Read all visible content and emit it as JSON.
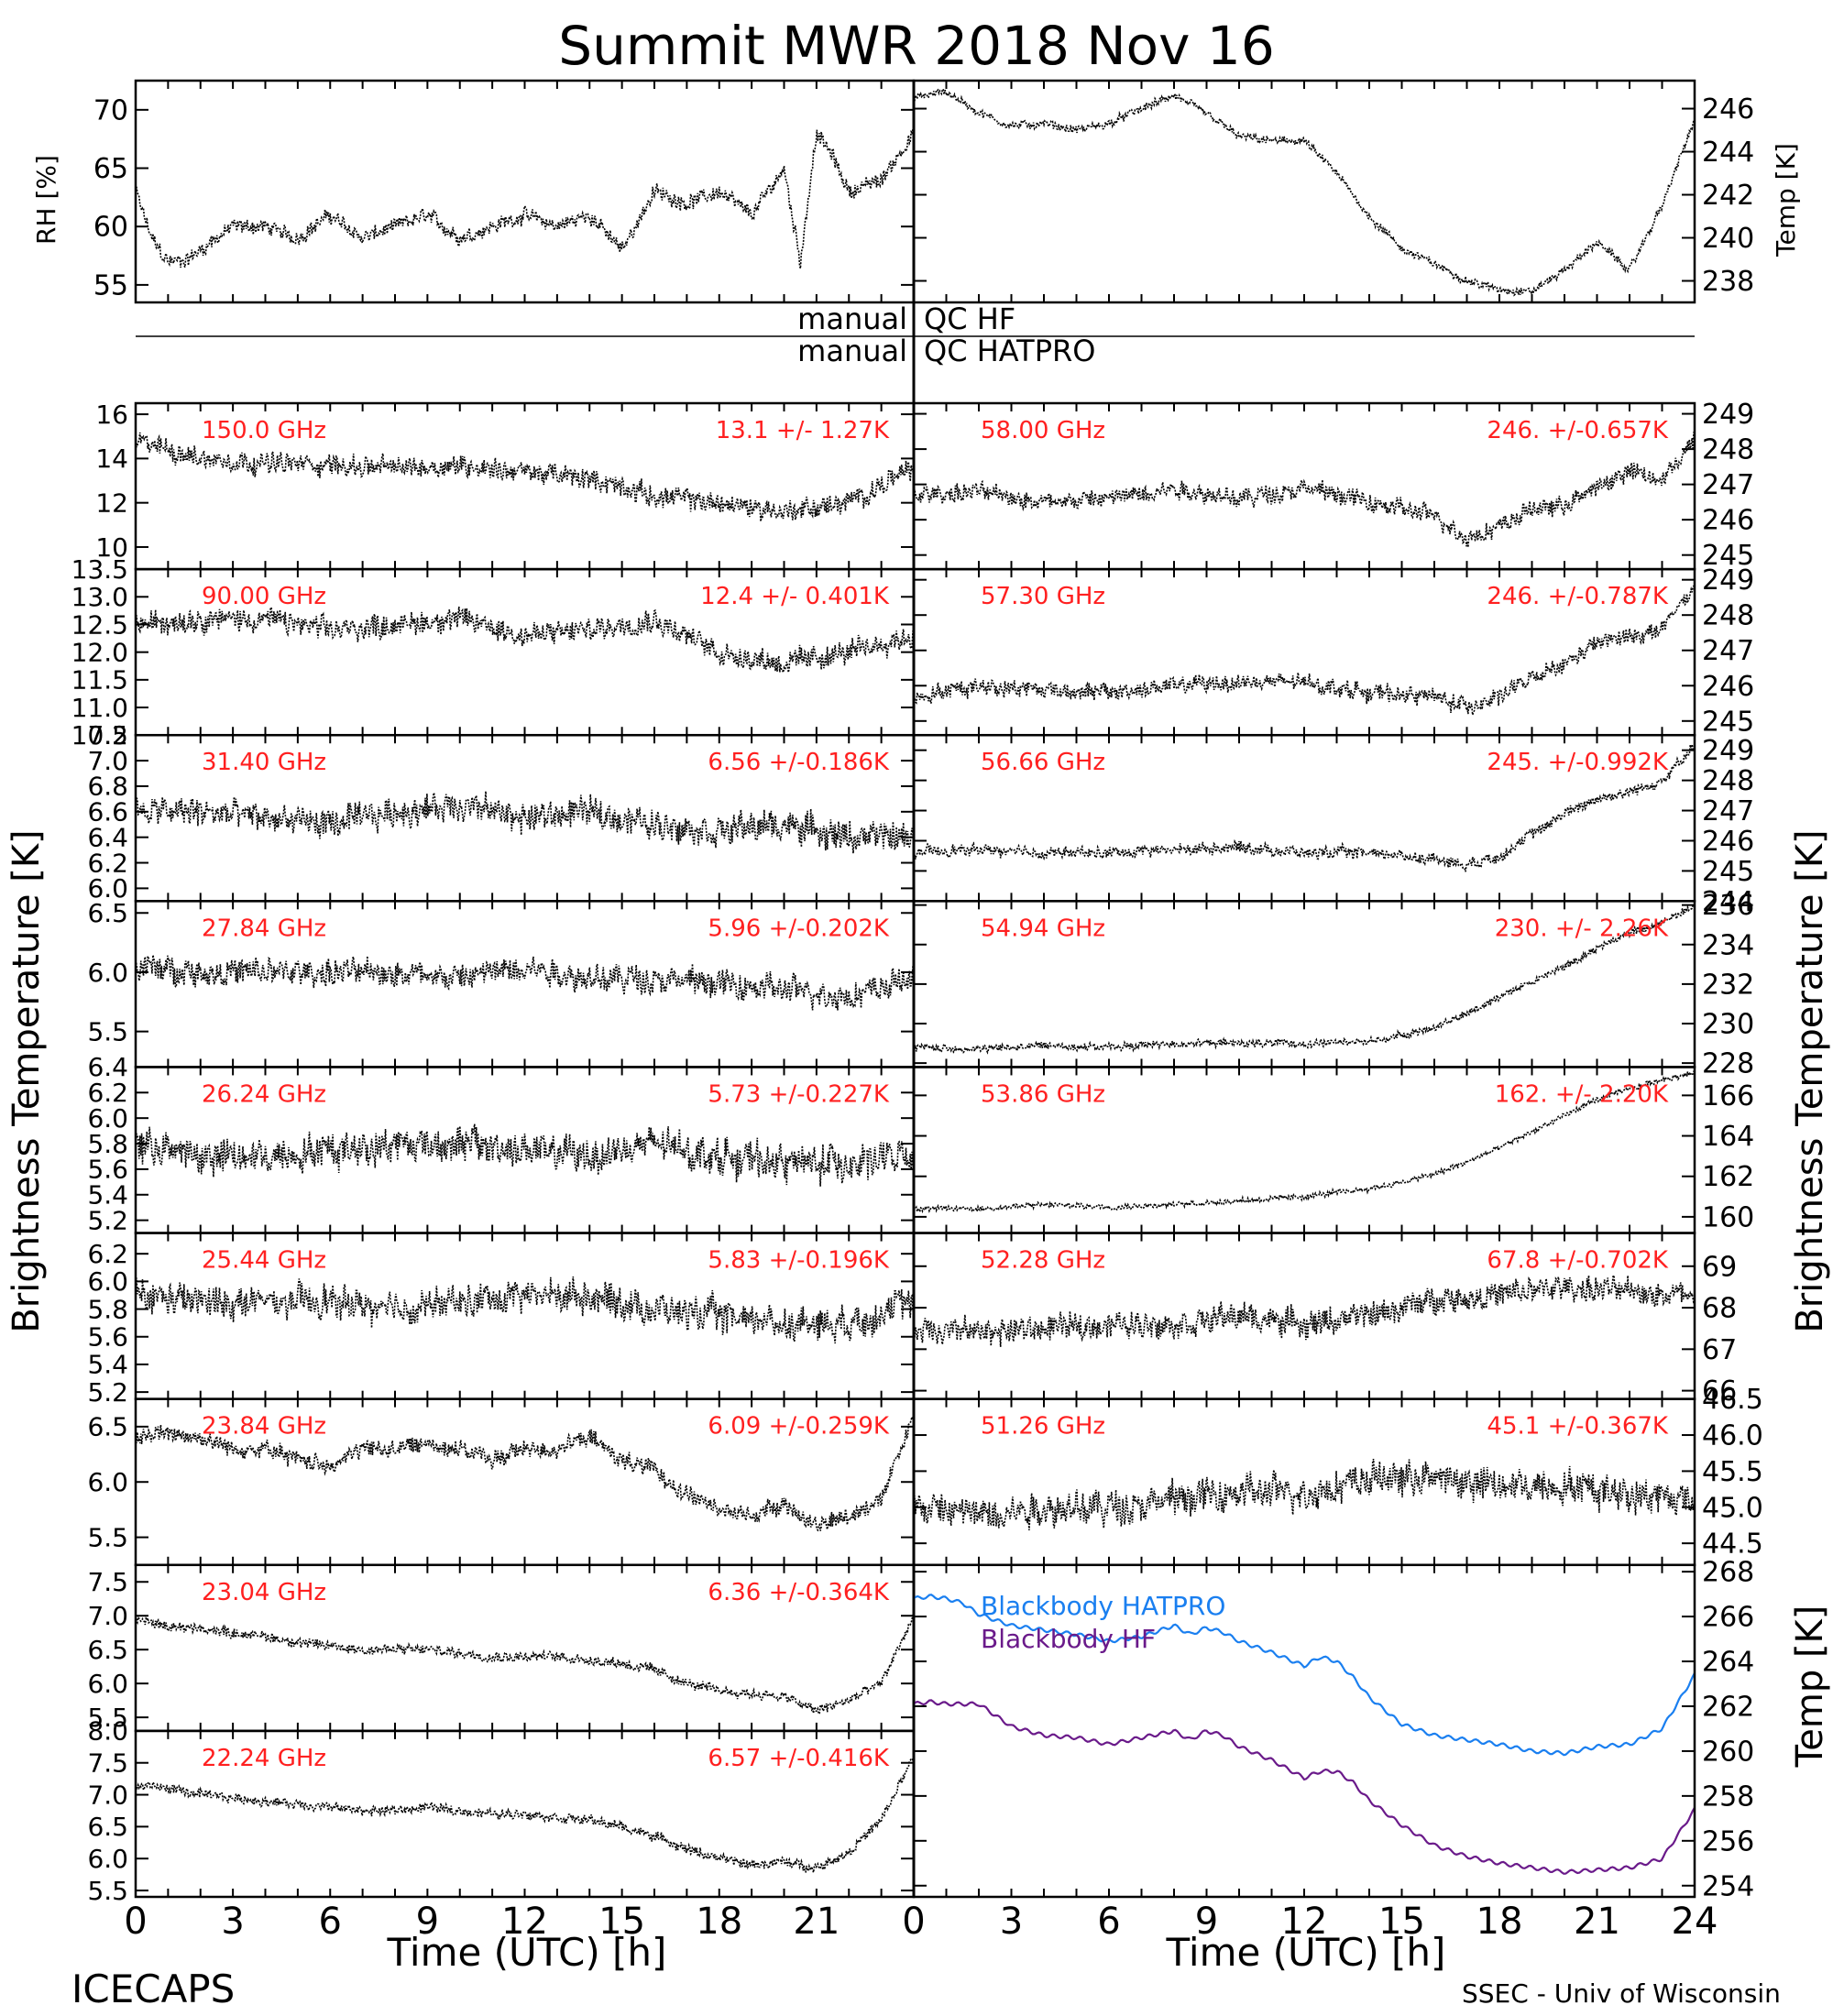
{
  "title": "Summit MWR 2018 Nov 16",
  "footer": {
    "left": "ICECAPS",
    "right": "SSEC - Univ of Wisconsin"
  },
  "qc": {
    "left_hf": "manual",
    "right_hf": "QC HF",
    "left_hatpro": "manual",
    "right_hatpro": "QC HATPRO"
  },
  "axes": {
    "rh_label": "RH [%]",
    "temp_label": "Temp [K]",
    "bt_label": "Brightness Temperature [K]",
    "bb_temp_label": "Temp [K]",
    "xlabel": "Time (UTC) [h]",
    "x_ticks_left": [
      "0",
      "3",
      "6",
      "9",
      "12",
      "15",
      "18",
      "21"
    ],
    "x_ticks_right": [
      "0",
      "3",
      "6",
      "9",
      "12",
      "15",
      "18",
      "21",
      "24"
    ]
  },
  "colors": {
    "red": "#ff2020",
    "hatpro": "#1a7ff0",
    "hf": "#6a1a8a",
    "trace": "#000000"
  },
  "chart_data": [
    {
      "type": "line",
      "title": "",
      "xlabel": "",
      "ylabel": "RH [%]",
      "xlim": [
        0,
        24
      ],
      "ylim": [
        53.5,
        72.5
      ],
      "yticks": [
        55,
        60,
        65,
        70
      ],
      "series": [
        {
          "x": [
            0,
            0.5,
            1,
            1.5,
            2,
            3,
            4,
            5,
            6,
            7,
            8,
            9,
            10,
            11,
            12,
            13,
            14,
            15,
            16,
            17,
            18,
            19,
            20,
            20.5,
            21,
            21.5,
            22,
            23,
            24
          ],
          "values": [
            63,
            59,
            57,
            57,
            58,
            60,
            60,
            59,
            61,
            59,
            60,
            61,
            59,
            60,
            61,
            60,
            61,
            58,
            63,
            62,
            63,
            61,
            65,
            57,
            68,
            66,
            63,
            64,
            68
          ]
        }
      ]
    },
    {
      "type": "line",
      "title": "",
      "xlabel": "",
      "ylabel": "Temp [K]",
      "xlim": [
        0,
        24
      ],
      "ylim": [
        237,
        247.3
      ],
      "yticks": [
        238,
        240,
        242,
        244,
        246
      ],
      "series": [
        {
          "x": [
            0,
            1,
            2,
            3,
            4,
            5,
            6,
            7,
            8,
            9,
            10,
            11,
            12,
            13,
            14,
            15,
            16,
            17,
            18,
            19,
            20,
            21,
            22,
            23,
            24
          ],
          "values": [
            246.5,
            246.8,
            245.8,
            245.2,
            245.3,
            245,
            245.3,
            246,
            246.6,
            245.8,
            244.7,
            244.5,
            244.5,
            243,
            241,
            239.5,
            238.8,
            238,
            237.6,
            237.5,
            238.5,
            239.8,
            238.5,
            241.5,
            245.5
          ]
        }
      ]
    }
  ],
  "panels_left": [
    {
      "freq": "150.0 GHz",
      "stat": "13.1 +/-  1.27K",
      "ylim": [
        9,
        16.5
      ],
      "yticks": [
        "10",
        "12",
        "14",
        "16"
      ],
      "x": [
        0,
        2,
        4,
        6,
        8,
        10,
        12,
        14,
        16,
        18,
        20,
        22,
        24
      ],
      "values": [
        14.8,
        14,
        13.8,
        13.7,
        13.6,
        13.7,
        13.4,
        13.1,
        12.3,
        12,
        11.6,
        12,
        13.6
      ],
      "noise": 0.9
    },
    {
      "freq": "90.00 GHz",
      "stat": "12.4 +/- 0.401K",
      "ylim": [
        10.5,
        13.5
      ],
      "yticks": [
        "10.5",
        "11.0",
        "11.5",
        "12.0",
        "12.5",
        "13.0",
        "13.5"
      ],
      "x": [
        0,
        2,
        4,
        6,
        8,
        10,
        12,
        14,
        16,
        18,
        20,
        22,
        24
      ],
      "values": [
        12.5,
        12.6,
        12.6,
        12.4,
        12.5,
        12.6,
        12.3,
        12.4,
        12.6,
        12.0,
        11.8,
        12.0,
        12.3
      ],
      "noise": 0.4
    },
    {
      "freq": "31.40 GHz",
      "stat": "6.56 +/-0.186K",
      "ylim": [
        5.9,
        7.2
      ],
      "yticks": [
        "6.0",
        "6.2",
        "6.4",
        "6.6",
        "6.8",
        "7.0",
        "7.2"
      ],
      "x": [
        0,
        2,
        4,
        6,
        8,
        10,
        12,
        14,
        16,
        18,
        20,
        22,
        24
      ],
      "values": [
        6.6,
        6.6,
        6.55,
        6.5,
        6.6,
        6.65,
        6.55,
        6.6,
        6.5,
        6.45,
        6.5,
        6.4,
        6.4
      ],
      "noise": 0.22
    },
    {
      "freq": "27.84 GHz",
      "stat": "5.96 +/-0.202K",
      "ylim": [
        5.2,
        6.6
      ],
      "yticks": [
        "5.5",
        "6.0",
        "6.5"
      ],
      "x": [
        0,
        2,
        4,
        6,
        8,
        10,
        12,
        14,
        16,
        18,
        20,
        22,
        24
      ],
      "values": [
        6.05,
        6.0,
        6.0,
        6.0,
        6.0,
        5.95,
        6.05,
        5.95,
        5.95,
        5.9,
        5.85,
        5.8,
        5.95
      ],
      "noise": 0.22
    },
    {
      "freq": "26.24 GHz",
      "stat": "5.73 +/-0.227K",
      "ylim": [
        5.1,
        6.4
      ],
      "yticks": [
        "5.2",
        "5.4",
        "5.6",
        "5.8",
        "6.0",
        "6.2",
        "6.4"
      ],
      "x": [
        0,
        2,
        4,
        6,
        8,
        10,
        12,
        14,
        16,
        18,
        20,
        22,
        24
      ],
      "values": [
        5.8,
        5.7,
        5.7,
        5.75,
        5.8,
        5.8,
        5.75,
        5.7,
        5.8,
        5.7,
        5.65,
        5.65,
        5.7
      ],
      "noise": 0.26
    },
    {
      "freq": "25.44 GHz",
      "stat": "5.83 +/-0.196K",
      "ylim": [
        5.15,
        6.35
      ],
      "yticks": [
        "5.2",
        "5.4",
        "5.6",
        "5.8",
        "6.0",
        "6.2"
      ],
      "x": [
        0,
        2,
        4,
        6,
        8,
        10,
        12,
        14,
        16,
        18,
        20,
        22,
        24
      ],
      "values": [
        5.9,
        5.85,
        5.85,
        5.85,
        5.8,
        5.85,
        5.9,
        5.9,
        5.8,
        5.75,
        5.7,
        5.7,
        5.85
      ],
      "noise": 0.22
    },
    {
      "freq": "23.84 GHz",
      "stat": "6.09 +/-0.259K",
      "ylim": [
        5.25,
        6.75
      ],
      "yticks": [
        "5.5",
        "6.0",
        "6.5"
      ],
      "x": [
        0,
        1,
        2,
        3,
        4,
        5,
        6,
        7,
        8,
        9,
        10,
        11,
        12,
        13,
        14,
        15,
        16,
        17,
        18,
        19,
        20,
        21,
        22,
        23,
        24
      ],
      "values": [
        6.4,
        6.45,
        6.4,
        6.3,
        6.3,
        6.2,
        6.15,
        6.3,
        6.3,
        6.35,
        6.3,
        6.2,
        6.3,
        6.3,
        6.4,
        6.2,
        6.1,
        5.9,
        5.75,
        5.7,
        5.8,
        5.6,
        5.7,
        5.85,
        6.6
      ],
      "noise": 0.15
    },
    {
      "freq": "23.04 GHz",
      "stat": "6.36 +/-0.364K",
      "ylim": [
        5.3,
        7.75
      ],
      "yticks": [
        "5.5",
        "6.0",
        "6.5",
        "7.0",
        "7.5"
      ],
      "x": [
        0,
        1,
        2,
        3,
        4,
        5,
        6,
        7,
        8,
        9,
        10,
        11,
        12,
        13,
        14,
        15,
        16,
        17,
        18,
        19,
        20,
        21,
        22,
        23,
        24
      ],
      "values": [
        6.95,
        6.85,
        6.8,
        6.75,
        6.7,
        6.6,
        6.55,
        6.5,
        6.5,
        6.5,
        6.45,
        6.4,
        6.4,
        6.4,
        6.35,
        6.3,
        6.2,
        6.0,
        5.9,
        5.85,
        5.8,
        5.6,
        5.75,
        6.0,
        7.0
      ],
      "noise": 0.14
    },
    {
      "freq": "22.24 GHz",
      "stat": "6.57 +/-0.416K",
      "ylim": [
        5.4,
        8.0
      ],
      "yticks": [
        "5.5",
        "6.0",
        "6.5",
        "7.0",
        "7.5",
        "8.0"
      ],
      "x": [
        0,
        1,
        2,
        3,
        4,
        5,
        6,
        7,
        8,
        9,
        10,
        11,
        12,
        13,
        14,
        15,
        16,
        17,
        18,
        19,
        20,
        21,
        22,
        23,
        24
      ],
      "values": [
        7.15,
        7.1,
        7.0,
        6.95,
        6.9,
        6.85,
        6.8,
        6.75,
        6.75,
        6.8,
        6.75,
        6.7,
        6.7,
        6.65,
        6.6,
        6.5,
        6.35,
        6.15,
        6.0,
        5.9,
        5.95,
        5.85,
        6.1,
        6.6,
        7.6
      ],
      "noise": 0.14
    }
  ],
  "panels_right": [
    {
      "freq": "58.00 GHz",
      "stat": "246. +/-0.657K",
      "ylim": [
        244.6,
        249.3
      ],
      "yticks": [
        "245",
        "246",
        "247",
        "248",
        "249"
      ],
      "x": [
        0,
        2,
        4,
        6,
        8,
        10,
        12,
        14,
        16,
        17,
        18,
        19,
        20,
        21,
        22,
        23,
        24
      ],
      "values": [
        246.7,
        246.8,
        246.5,
        246.6,
        246.9,
        246.6,
        246.9,
        246.5,
        246.1,
        245.5,
        245.8,
        246.3,
        246.4,
        246.9,
        247.4,
        247.1,
        248.3
      ],
      "noise": 0.5
    },
    {
      "freq": "57.30 GHz",
      "stat": "246. +/-0.787K",
      "ylim": [
        244.6,
        249.3
      ],
      "yticks": [
        "245",
        "246",
        "247",
        "248",
        "249"
      ],
      "x": [
        0,
        2,
        4,
        6,
        8,
        10,
        12,
        14,
        16,
        17,
        18,
        19,
        20,
        21,
        22,
        23,
        24
      ],
      "values": [
        245.7,
        246.0,
        245.9,
        245.8,
        246.0,
        246.1,
        246.1,
        245.8,
        245.7,
        245.4,
        245.7,
        246.2,
        246.6,
        247.2,
        247.4,
        247.6,
        248.8
      ],
      "noise": 0.45
    },
    {
      "freq": "56.66 GHz",
      "stat": "245. +/-0.992K",
      "ylim": [
        244,
        249.5
      ],
      "yticks": [
        "244",
        "245",
        "246",
        "247",
        "248",
        "249"
      ],
      "x": [
        0,
        2,
        4,
        6,
        8,
        10,
        12,
        14,
        16,
        17,
        18,
        19,
        20,
        21,
        22,
        23,
        24
      ],
      "values": [
        245.6,
        245.7,
        245.6,
        245.6,
        245.7,
        245.8,
        245.6,
        245.6,
        245.4,
        245.2,
        245.5,
        246.2,
        246.9,
        247.4,
        247.6,
        248.0,
        249.1
      ],
      "noise": 0.35
    },
    {
      "freq": "54.94 GHz",
      "stat": "230. +/-  2.26K",
      "ylim": [
        227.8,
        236.2
      ],
      "yticks": [
        "228",
        "230",
        "232",
        "234",
        "236"
      ],
      "x": [
        0,
        2,
        4,
        6,
        8,
        10,
        12,
        14,
        15,
        16,
        17,
        18,
        19,
        20,
        21,
        22,
        23,
        24
      ],
      "values": [
        228.8,
        228.7,
        228.9,
        228.8,
        229.0,
        229.0,
        229.0,
        229.1,
        229.4,
        229.8,
        230.5,
        231.4,
        232.1,
        232.9,
        233.8,
        234.6,
        235.1,
        236.0
      ],
      "noise": 0.35
    },
    {
      "freq": "53.86 GHz",
      "stat": "162. +/-  2.20K",
      "ylim": [
        159.2,
        167.4
      ],
      "yticks": [
        "160",
        "162",
        "164",
        "166"
      ],
      "x": [
        0,
        2,
        4,
        6,
        8,
        10,
        12,
        14,
        15,
        16,
        17,
        18,
        19,
        20,
        21,
        22,
        23,
        24
      ],
      "values": [
        160.4,
        160.4,
        160.6,
        160.5,
        160.6,
        160.8,
        161.0,
        161.4,
        161.7,
        162.1,
        162.7,
        163.4,
        164.2,
        165.0,
        165.8,
        166.3,
        166.8,
        167.1
      ],
      "noise": 0.25
    },
    {
      "freq": "52.28 GHz",
      "stat": "67.8 +/-0.702K",
      "ylim": [
        65.8,
        69.8
      ],
      "yticks": [
        "66",
        "67",
        "68",
        "69"
      ],
      "x": [
        0,
        2,
        4,
        6,
        8,
        10,
        12,
        14,
        16,
        18,
        20,
        22,
        24
      ],
      "values": [
        67.5,
        67.4,
        67.5,
        67.6,
        67.6,
        67.8,
        67.6,
        67.8,
        68.2,
        68.3,
        68.5,
        68.4,
        68.3
      ],
      "noise": 0.6
    },
    {
      "freq": "51.26 GHz",
      "stat": "45.1 +/-0.367K",
      "ylim": [
        44.2,
        46.5
      ],
      "yticks": [
        "44.5",
        "45.0",
        "45.5",
        "46.0",
        "46.5"
      ],
      "x": [
        0,
        2,
        4,
        6,
        8,
        10,
        12,
        14,
        16,
        18,
        20,
        22,
        24
      ],
      "values": [
        45.0,
        44.9,
        45.0,
        45.0,
        45.1,
        45.2,
        45.2,
        45.4,
        45.4,
        45.3,
        45.3,
        45.2,
        45.1
      ],
      "noise": 0.45
    }
  ],
  "blackbody": {
    "ylim": [
      253.5,
      268.3
    ],
    "yticks": [
      "254",
      "256",
      "258",
      "260",
      "262",
      "264",
      "266",
      "268"
    ],
    "series": [
      {
        "name": "Blackbody HATPRO",
        "x": [
          0,
          0.5,
          1,
          1.5,
          2,
          3,
          4,
          5,
          6,
          7,
          8,
          8.5,
          9,
          9.5,
          10,
          11,
          12,
          12.5,
          13,
          13.5,
          14,
          15,
          16,
          17,
          18,
          19,
          20,
          21,
          22,
          23,
          24
        ],
        "values": [
          266.8,
          266.9,
          266.8,
          266.6,
          266.1,
          265.6,
          265.4,
          265.2,
          264.9,
          265.1,
          265.6,
          265.2,
          265.5,
          265.3,
          264.9,
          264.4,
          263.8,
          264.2,
          264.0,
          263.3,
          262.4,
          261.2,
          260.7,
          260.5,
          260.3,
          260.0,
          259.9,
          260.2,
          260.3,
          261.0,
          263.4
        ]
      },
      {
        "name": "Blackbody HF",
        "x": [
          0,
          0.5,
          1,
          1.5,
          2,
          3,
          4,
          5,
          6,
          7,
          8,
          8.5,
          9,
          9.5,
          10,
          11,
          12,
          12.5,
          13,
          13.5,
          14,
          15,
          16,
          17,
          18,
          19,
          20,
          21,
          22,
          23,
          24
        ],
        "values": [
          262.1,
          262.2,
          262.1,
          262.1,
          262.1,
          261.1,
          260.7,
          260.6,
          260.3,
          260.6,
          260.9,
          260.5,
          260.9,
          260.7,
          260.2,
          259.6,
          258.8,
          259.1,
          259.1,
          258.6,
          257.8,
          256.7,
          255.8,
          255.3,
          255.0,
          254.8,
          254.6,
          254.7,
          254.8,
          255.2,
          257.4
        ]
      }
    ]
  }
}
